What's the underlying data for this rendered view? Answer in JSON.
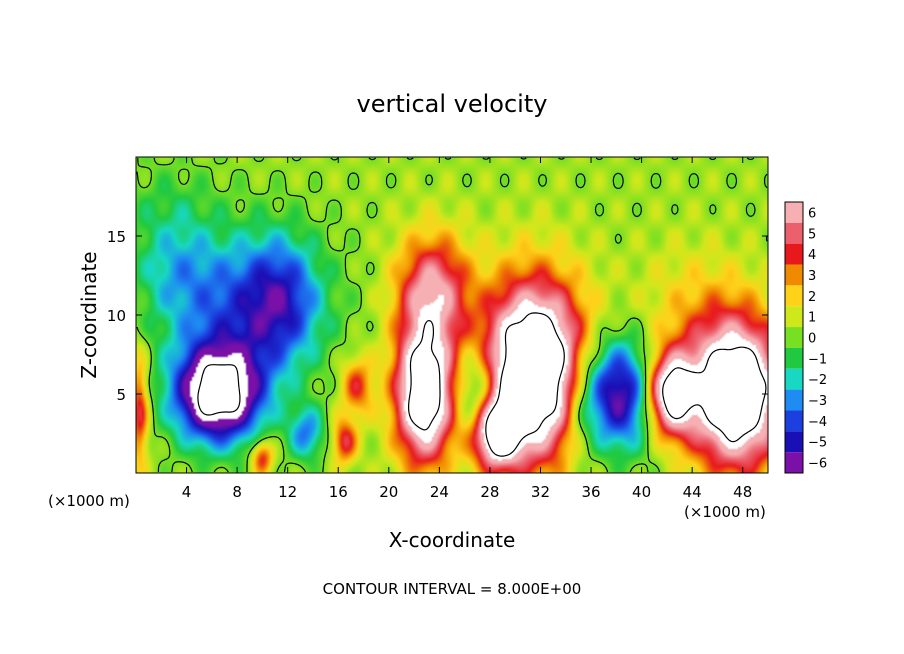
{
  "chart_data": {
    "type": "heatmap",
    "title": "vertical velocity",
    "xlabel": "X-coordinate",
    "ylabel": "Z-coordinate",
    "x_unit_left": "(×1000 m)",
    "x_unit_right": "(×1000 m)",
    "xlim": [
      0,
      50
    ],
    "ylim": [
      0,
      20
    ],
    "x_ticks": [
      "4",
      "8",
      "12",
      "16",
      "20",
      "24",
      "28",
      "32",
      "36",
      "40",
      "44",
      "48"
    ],
    "x_tick_values": [
      4,
      8,
      12,
      16,
      20,
      24,
      28,
      32,
      36,
      40,
      44,
      48
    ],
    "y_ticks": [
      "5",
      "10",
      "15"
    ],
    "y_tick_values": [
      5,
      10,
      15
    ],
    "colorbar": {
      "labels": [
        "6",
        "5",
        "4",
        "3",
        "2",
        "1",
        "0",
        "−1",
        "−2",
        "−3",
        "−4",
        "−5",
        "−6"
      ],
      "levels": [
        6,
        5,
        4,
        3,
        2,
        1,
        0,
        -1,
        -2,
        -3,
        -4,
        -5,
        -6
      ],
      "colors": [
        "#f6b0b4",
        "#ec5f6c",
        "#e8191d",
        "#f08a00",
        "#ffd21a",
        "#cfe81c",
        "#77e023",
        "#20c93f",
        "#18d8c4",
        "#1e8cf2",
        "#1c3fe0",
        "#1a0fb5",
        "#7a10a8"
      ],
      "over_color": "#ffffff"
    },
    "features": [
      {
        "x": 8.5,
        "z": 10.5,
        "w": -4.0,
        "sx": 4.2,
        "sz": 3.2
      },
      {
        "x": 11.5,
        "z": 11.0,
        "w": -3.0,
        "sx": 2.0,
        "sz": 2.8
      },
      {
        "x": 6.5,
        "z": 5.0,
        "w": -10.0,
        "sx": 2.4,
        "sz": 2.1
      },
      {
        "x": 3.0,
        "z": 13.0,
        "w": -1.8,
        "sx": 2.2,
        "sz": 2.2
      },
      {
        "x": 23.5,
        "z": 11.5,
        "w": 5.5,
        "sx": 2.0,
        "sz": 2.5
      },
      {
        "x": 22.8,
        "z": 5.0,
        "w": 10.0,
        "sx": 1.6,
        "sz": 3.0
      },
      {
        "x": 31.5,
        "z": 6.5,
        "w": 12.0,
        "sx": 2.8,
        "sz": 3.8
      },
      {
        "x": 28.5,
        "z": 2.5,
        "w": 8.0,
        "sx": 1.3,
        "sz": 1.5
      },
      {
        "x": 27.0,
        "z": 5.0,
        "w": -4.0,
        "sx": 1.2,
        "sz": 2.0
      },
      {
        "x": 38.0,
        "z": 5.0,
        "w": -7.0,
        "sx": 2.2,
        "sz": 2.4
      },
      {
        "x": 42.3,
        "z": 5.0,
        "w": 9.0,
        "sx": 1.4,
        "sz": 1.8
      },
      {
        "x": 47.5,
        "z": 5.0,
        "w": 11.0,
        "sx": 2.5,
        "sz": 3.2
      },
      {
        "x": 44.0,
        "z": 10.0,
        "w": 1.5,
        "sx": 3.0,
        "sz": 3.0
      },
      {
        "x": 17.5,
        "z": 5.5,
        "w": 3.5,
        "sx": 0.9,
        "sz": 1.3
      },
      {
        "x": 16.5,
        "z": 2.0,
        "w": 4.0,
        "sx": 0.7,
        "sz": 1.0
      },
      {
        "x": 13.5,
        "z": 2.5,
        "w": -3.5,
        "sx": 1.0,
        "sz": 1.2
      },
      {
        "x": 10.0,
        "z": 1.0,
        "w": 4.0,
        "sx": 0.6,
        "sz": 0.8
      },
      {
        "x": 0.3,
        "z": 4.0,
        "w": 4.0,
        "sx": 0.5,
        "sz": 2.5
      },
      {
        "x": 35.0,
        "z": 4.0,
        "w": -1.5,
        "sx": 1.0,
        "sz": 2.5
      },
      {
        "x": 2.5,
        "z": 17.0,
        "w": -1.0,
        "sx": 3.0,
        "sz": 2.0
      }
    ]
  },
  "footer": {
    "contour_interval": "CONTOUR INTERVAL = 8.000E+00"
  }
}
